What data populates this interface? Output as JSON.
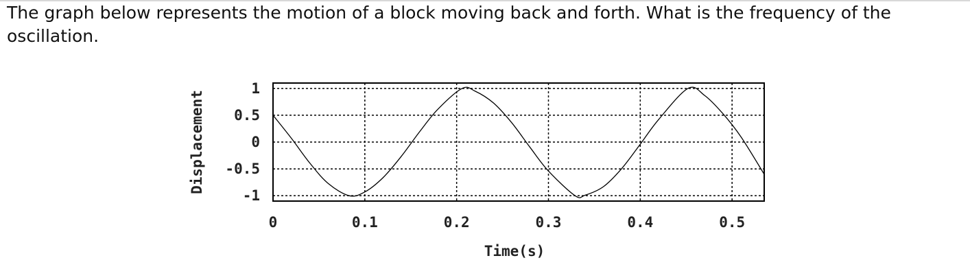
{
  "question": {
    "text": "The graph below represents the motion of a block moving back and forth. What is the frequency of the oscillation."
  },
  "chart_data": {
    "type": "line",
    "title": "",
    "xlabel": "Time(s)",
    "ylabel": "Displacement",
    "xlim": [
      0,
      0.535
    ],
    "ylim": [
      -1.1,
      1.1
    ],
    "grid": true,
    "line_color": "#000000",
    "grid_color": "#000000",
    "x_ticks": [
      {
        "value": 0,
        "label": "0"
      },
      {
        "value": 0.1,
        "label": "0.1"
      },
      {
        "value": 0.2,
        "label": "0.2"
      },
      {
        "value": 0.3,
        "label": "0.3"
      },
      {
        "value": 0.4,
        "label": "0.4"
      },
      {
        "value": 0.5,
        "label": "0.5"
      }
    ],
    "y_ticks": [
      {
        "value": 1,
        "label": "1"
      },
      {
        "value": 0.5,
        "label": "0.5"
      },
      {
        "value": 0,
        "label": "0"
      },
      {
        "value": -0.5,
        "label": "-0.5"
      },
      {
        "value": -1,
        "label": "-1"
      }
    ],
    "series": [
      {
        "x": [
          0,
          0.02,
          0.04,
          0.06,
          0.083,
          0.1,
          0.12,
          0.14,
          0.16,
          0.18,
          0.206,
          0.22,
          0.24,
          0.26,
          0.28,
          0.3,
          0.329,
          0.34,
          0.36,
          0.38,
          0.4,
          0.42,
          0.452,
          0.47,
          0.49,
          0.51,
          0.535
        ],
        "y": [
          0.5,
          0.07,
          -0.39,
          -0.77,
          -1.0,
          -0.93,
          -0.66,
          -0.26,
          0.2,
          0.62,
          1.0,
          0.95,
          0.73,
          0.36,
          -0.1,
          -0.54,
          -1.0,
          -0.99,
          -0.83,
          -0.49,
          -0.04,
          0.42,
          1.0,
          0.87,
          0.53,
          0.09,
          -0.6
        ]
      }
    ]
  }
}
